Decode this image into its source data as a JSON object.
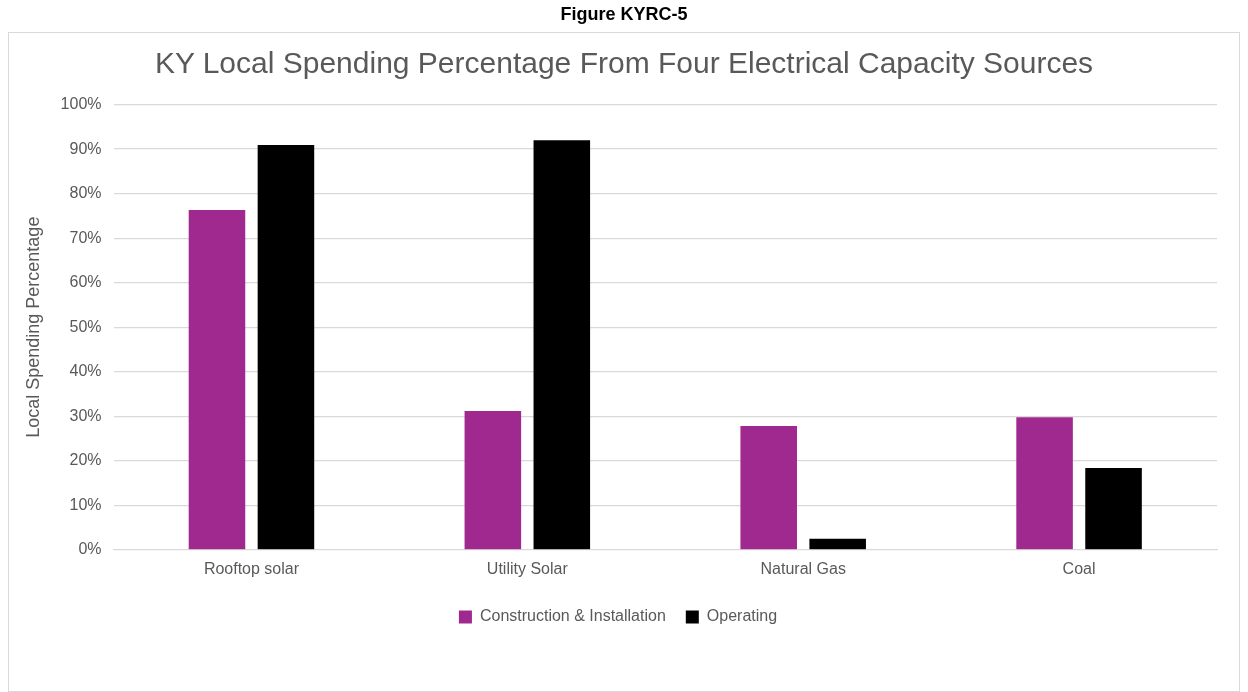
{
  "chart_data": {
    "type": "bar",
    "title": "Figure KYRC-5",
    "subtitle": "KY Local Spending Percentage From Four Electrical Capacity Sources",
    "ylabel": "Local Spending Percentage",
    "categories": [
      "Rooftop solar",
      "Utility Solar",
      "Natural Gas",
      "Coal"
    ],
    "series": [
      {
        "name": "Construction & Installation",
        "color": "#a0298f",
        "values": [
          76.3,
          31.2,
          27.8,
          29.8
        ]
      },
      {
        "name": "Operating",
        "color": "#000000",
        "values": [
          90.9,
          92.0,
          2.5,
          18.4
        ]
      }
    ],
    "ylim": [
      0,
      100
    ],
    "yticks": [
      {
        "value": 0,
        "label": "0%"
      },
      {
        "value": 10,
        "label": "10%"
      },
      {
        "value": 20,
        "label": "20%"
      },
      {
        "value": 30,
        "label": "30%"
      },
      {
        "value": 40,
        "label": "40%"
      },
      {
        "value": 50,
        "label": "50%"
      },
      {
        "value": 60,
        "label": "60%"
      },
      {
        "value": 70,
        "label": "70%"
      },
      {
        "value": 80,
        "label": "80%"
      },
      {
        "value": 90,
        "label": "90%"
      },
      {
        "value": 100,
        "label": "100%"
      }
    ],
    "grid": "y",
    "legend": "bottom"
  }
}
